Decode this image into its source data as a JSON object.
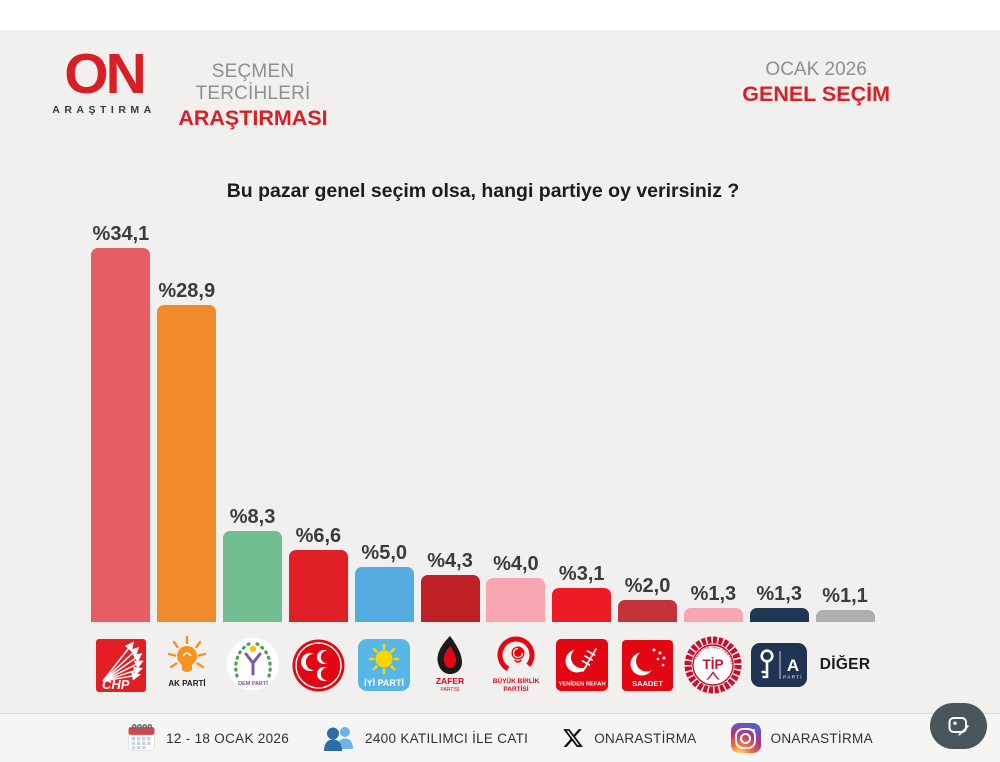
{
  "header": {
    "brand": {
      "word": "ON",
      "sub": "ARAŞTIRMA"
    },
    "tagline": {
      "line1": "SEÇMEN TERCİHLERİ",
      "line2": "ARAŞTIRMASI"
    },
    "edition": {
      "line1": "OCAK 2026",
      "line2": "GENEL SEÇİM"
    }
  },
  "chart_data": {
    "type": "bar",
    "title": "Bu pazar genel seçim olsa, hangi partiye oy verirsiniz ?",
    "value_unit": "%",
    "ylim": [
      0,
      36
    ],
    "grid": false,
    "legend": "none",
    "categories": [
      "CHP",
      "AK PARTİ",
      "DEM PARTİ",
      "MHP",
      "İYİ PARTİ",
      "ZAFER PARTİSİ",
      "BÜYÜK BİRLİK PARTİSİ",
      "YENİDEN REFAH",
      "SAADET",
      "TİP",
      "ANAHTAR PARTİ",
      "DİĞER"
    ],
    "values": [
      34.1,
      28.9,
      8.3,
      6.6,
      5.0,
      4.3,
      4.0,
      3.1,
      2.0,
      1.3,
      1.3,
      1.1
    ],
    "value_labels": [
      "%34,1",
      "%28,9",
      "%8,3",
      "%6,6",
      "%5,0",
      "%4,3",
      "%4,0",
      "%3,1",
      "%2,0",
      "%1,3",
      "%1,3",
      "%1,1"
    ],
    "bar_colors": [
      "#E75D66",
      "#F08A2D",
      "#72BE90",
      "#E11F26",
      "#54ACE0",
      "#BF2026",
      "#F7A6B2",
      "#ED1C24",
      "#C23439",
      "#F7A6B2",
      "#203655",
      "#AFAFAF"
    ]
  },
  "parties": [
    {
      "id": "chp",
      "label": "CHP"
    },
    {
      "id": "ak-parti",
      "label": "AK PARTİ"
    },
    {
      "id": "dem-parti",
      "label": "DEM PARTİ"
    },
    {
      "id": "mhp",
      "label": "MHP"
    },
    {
      "id": "iyi-parti",
      "label": "İYİ PARTİ"
    },
    {
      "id": "zafer",
      "label": "ZAFER",
      "label2": "PARTİSİ"
    },
    {
      "id": "bbp",
      "label": "BÜYÜK BİRLİK",
      "label2": "PARTİSİ"
    },
    {
      "id": "yeniden-refah",
      "label": "YENİDEN REFAH"
    },
    {
      "id": "saadet",
      "label": "SAADET"
    },
    {
      "id": "tip",
      "label": "TİP",
      "ring_text": "TÜRKİYE İŞÇİ PARTİSİ"
    },
    {
      "id": "anahtar-parti",
      "label": "A",
      "label2": "PARTİ"
    },
    {
      "id": "diger",
      "label": "DİĞER"
    }
  ],
  "footer": {
    "date_range": "12 - 18 OCAK 2026",
    "sample": "2400 KATILIMCI İLE CATI",
    "x_handle": "ONARASTİRMA",
    "instagram_handle": "ONARASTİRMA"
  },
  "colors": {
    "brand_red": "#D81F26",
    "background": "#F1F0EE",
    "footer_background": "#F6F5F3",
    "label_text": "#3B3B3B"
  }
}
